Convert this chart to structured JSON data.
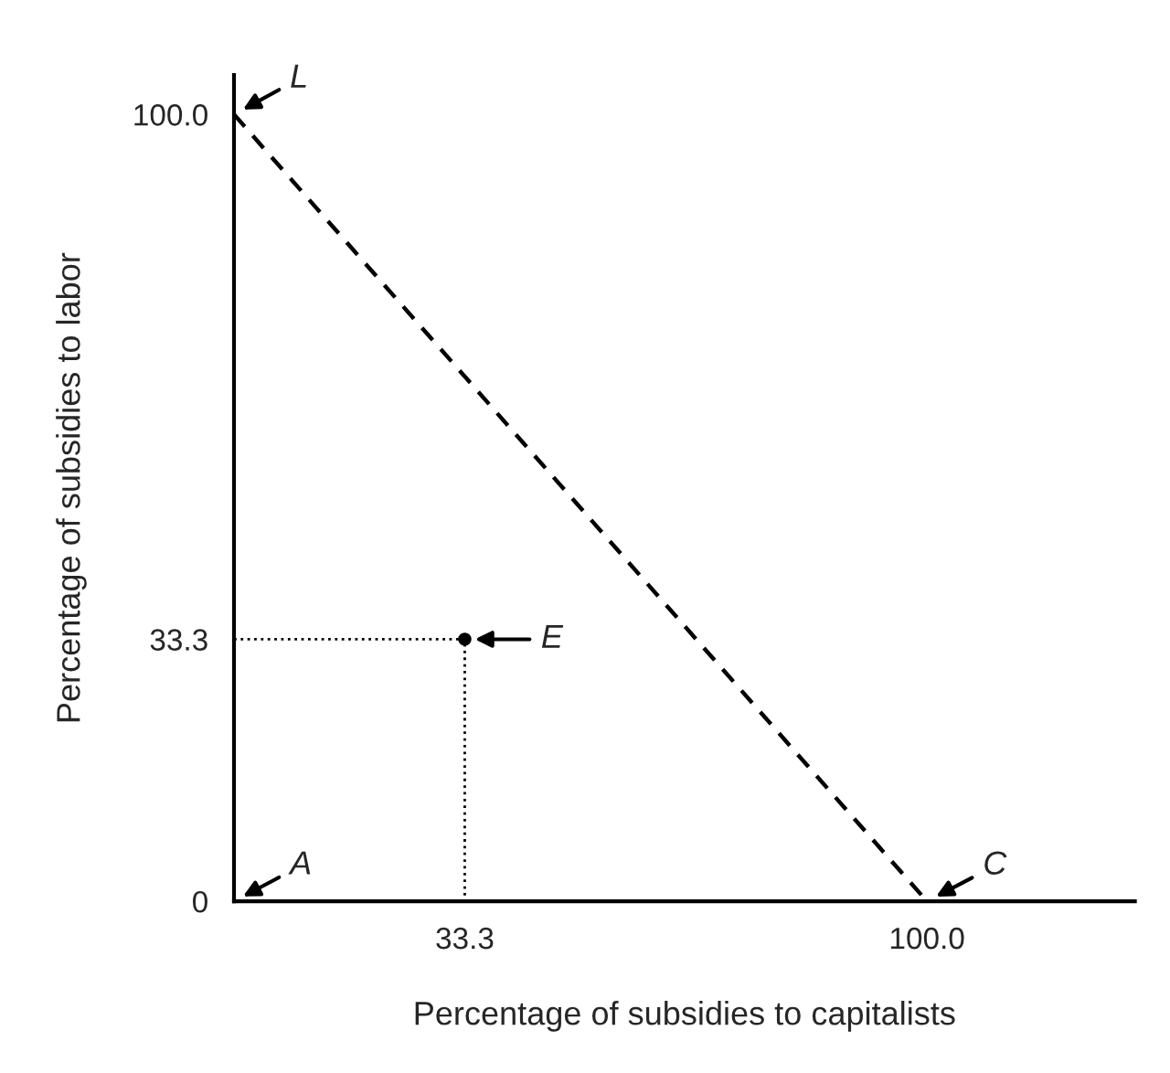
{
  "chart_data": {
    "type": "line",
    "xlabel": "Percentage of subsidies to capitalists",
    "ylabel": "Percentage of subsidies to labor",
    "xlim": [
      0,
      130
    ],
    "ylim": [
      0,
      105
    ],
    "xticks": [
      33.3,
      {
        "value": 100,
        "label": "100.0"
      }
    ],
    "yticks": [
      0,
      33.3,
      {
        "value": 100,
        "label": "100.0"
      }
    ],
    "grid": false,
    "legend": false,
    "series": [
      {
        "type": "line",
        "x": [
          0,
          100
        ],
        "values": [
          100,
          0
        ],
        "color": "#000000",
        "line_style": "dashed",
        "marker": "none"
      },
      {
        "type": "line",
        "x": [
          0,
          33.3,
          33.3
        ],
        "values": [
          33.3,
          33.3,
          0
        ],
        "color": "#000000",
        "line_style": "dotted",
        "marker": "none"
      },
      {
        "type": "scatter",
        "x": [
          33.3
        ],
        "values": [
          33.3
        ],
        "color": "#000000",
        "marker": "circle"
      }
    ],
    "annotations": [
      {
        "text": "L",
        "x": 0,
        "y": 100
      },
      {
        "text": "E",
        "x": 33.3,
        "y": 33.3
      },
      "A",
      {
        "text": "C",
        "x": 100,
        "y": 0
      }
    ]
  }
}
